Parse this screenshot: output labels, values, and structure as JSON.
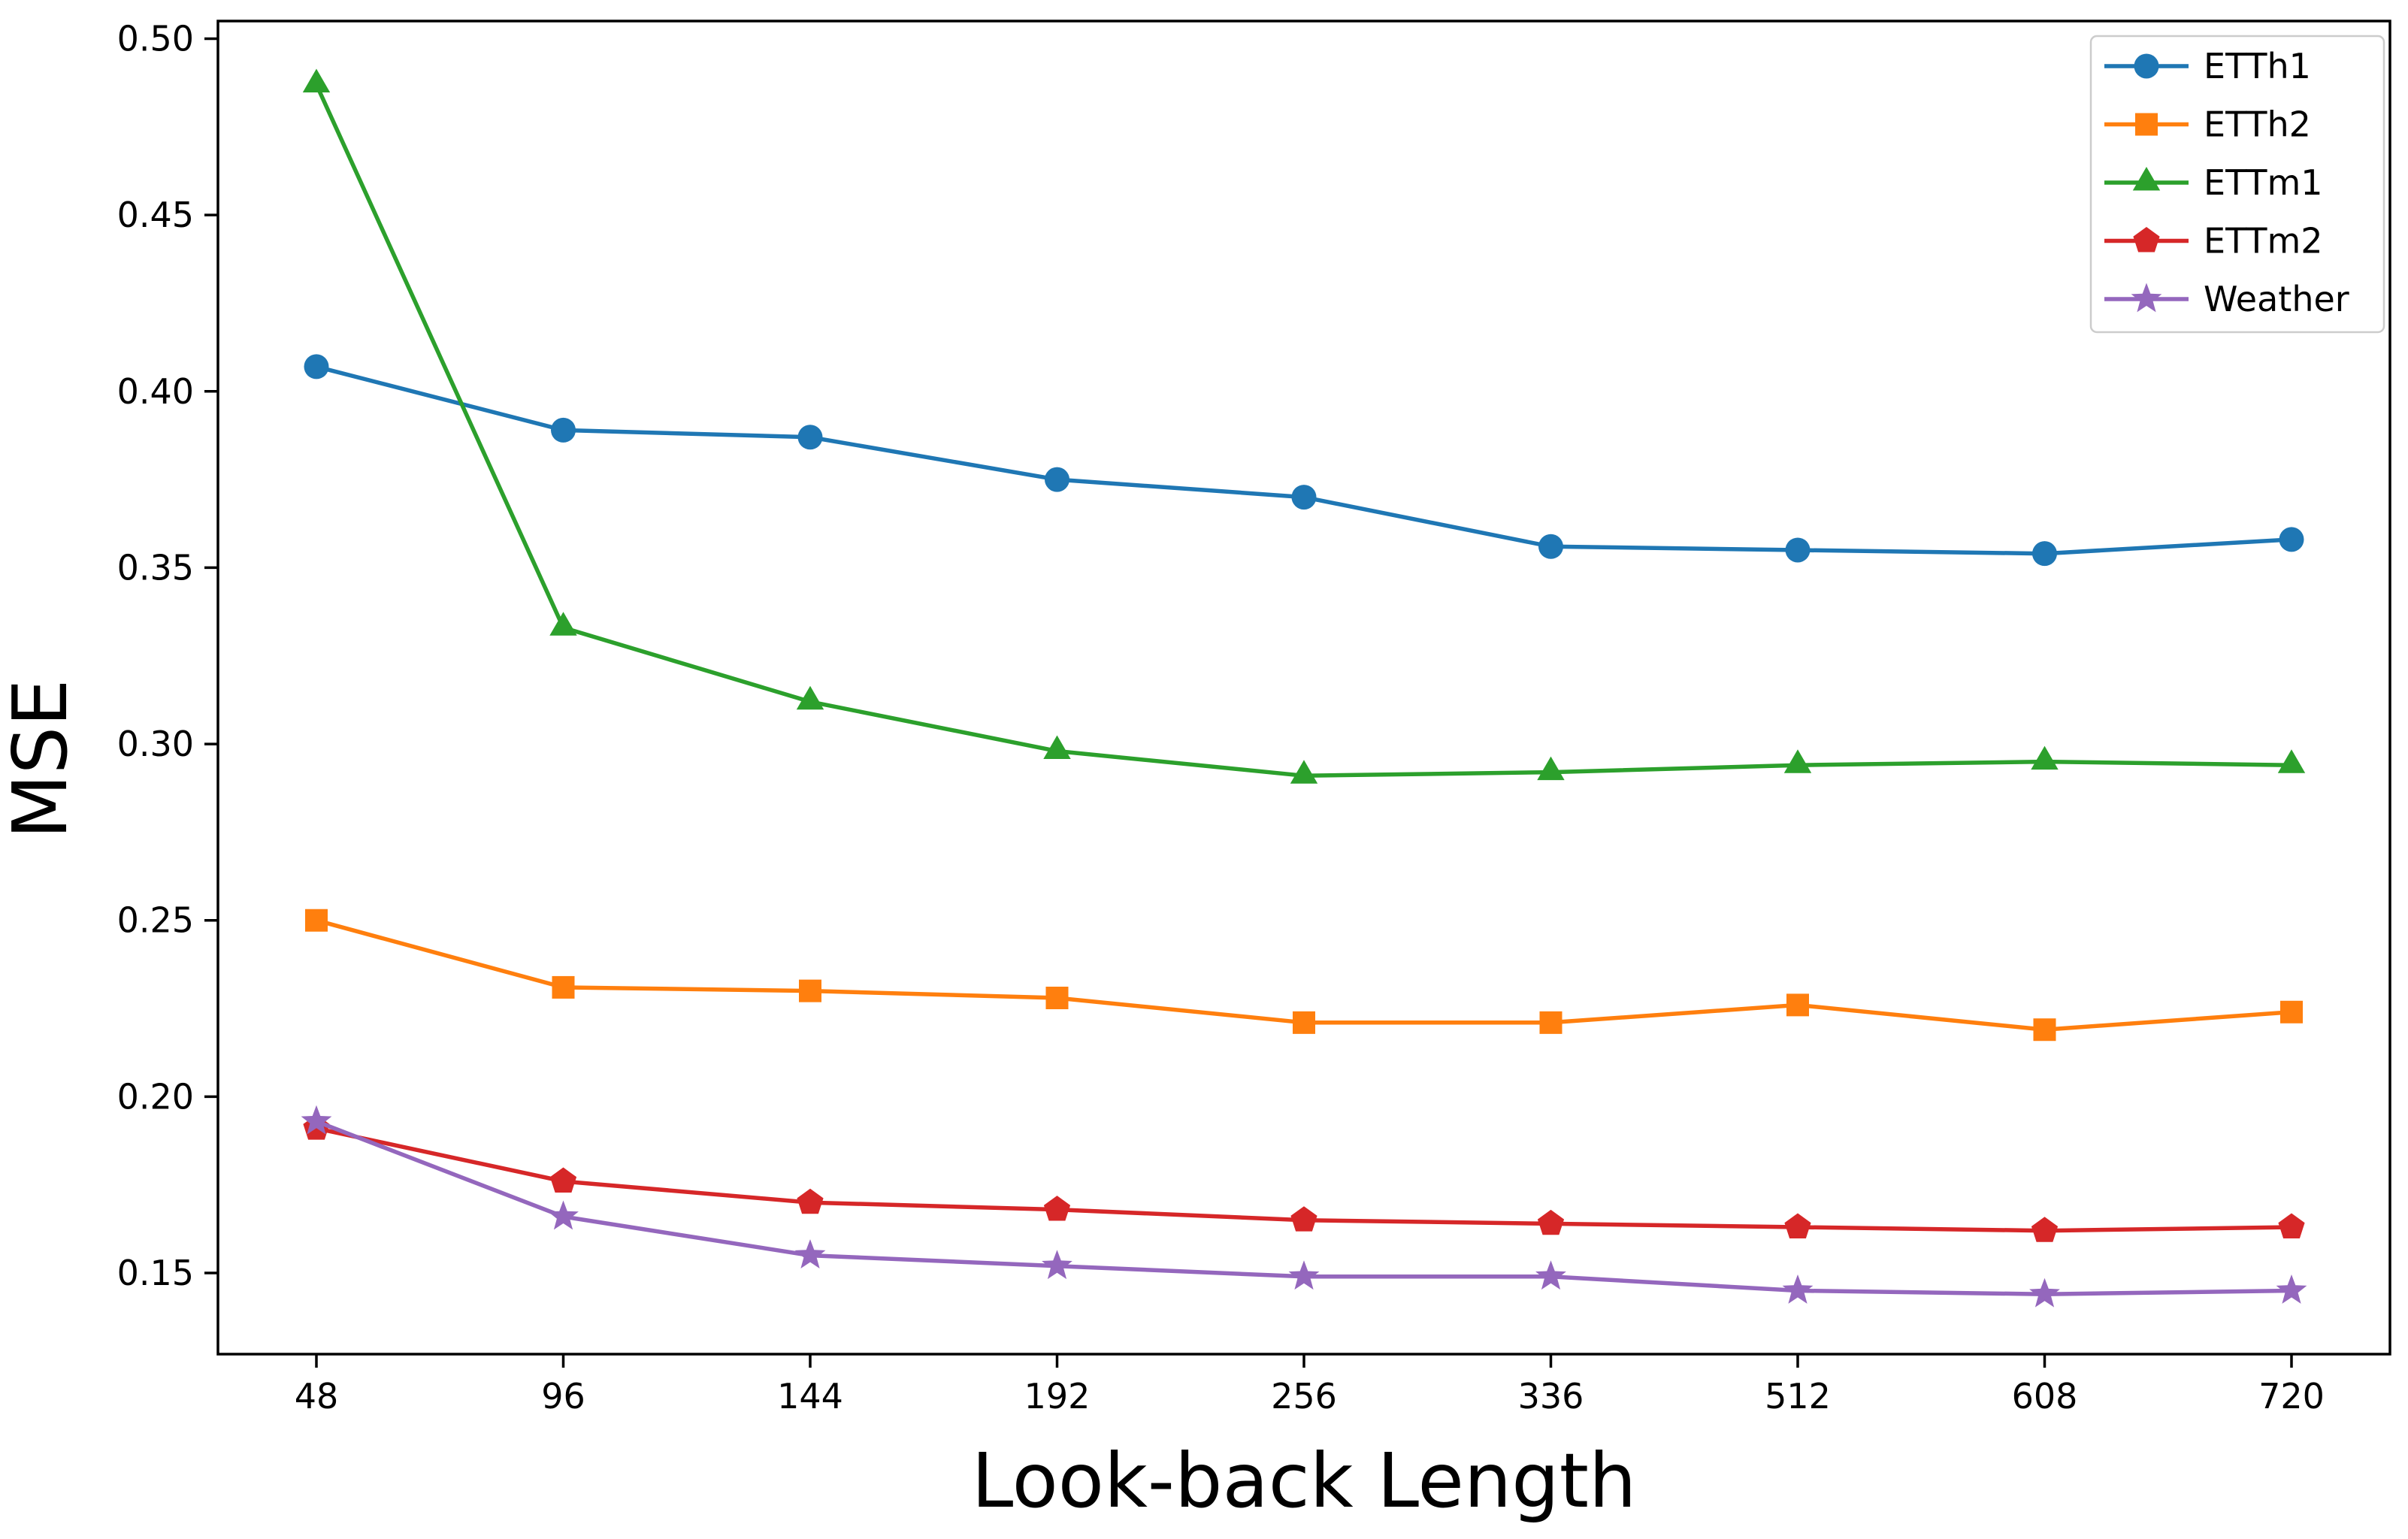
{
  "chart_data": {
    "type": "line",
    "title": "",
    "xlabel": "Look-back Length",
    "ylabel": "MSE",
    "categories": [
      "48",
      "96",
      "144",
      "192",
      "256",
      "336",
      "512",
      "608",
      "720"
    ],
    "ytick_labels": [
      "0.15",
      "0.20",
      "0.25",
      "0.30",
      "0.35",
      "0.40",
      "0.45",
      "0.50"
    ],
    "yticks": [
      0.15,
      0.2,
      0.25,
      0.3,
      0.35,
      0.4,
      0.45,
      0.5
    ],
    "ylim": [
      0.127,
      0.505
    ],
    "grid": false,
    "legend_position": "upper right",
    "frame_color": "#000000",
    "legend_edge_color": "#cccccc",
    "series": [
      {
        "name": "ETTh1",
        "color": "#1f77b4",
        "marker": "circle",
        "values": [
          0.407,
          0.389,
          0.387,
          0.375,
          0.37,
          0.356,
          0.355,
          0.354,
          0.358
        ]
      },
      {
        "name": "ETTh2",
        "color": "#ff7f0e",
        "marker": "square",
        "values": [
          0.25,
          0.231,
          0.23,
          0.228,
          0.221,
          0.221,
          0.226,
          0.219,
          0.224
        ]
      },
      {
        "name": "ETTm1",
        "color": "#2ca02c",
        "marker": "triangle",
        "values": [
          0.487,
          0.333,
          0.312,
          0.298,
          0.291,
          0.292,
          0.294,
          0.295,
          0.294
        ]
      },
      {
        "name": "ETTm2",
        "color": "#d62728",
        "marker": "pentagon",
        "values": [
          0.191,
          0.176,
          0.17,
          0.168,
          0.165,
          0.164,
          0.163,
          0.162,
          0.163
        ]
      },
      {
        "name": "Weather",
        "color": "#9467bd",
        "marker": "star",
        "values": [
          0.193,
          0.166,
          0.155,
          0.152,
          0.149,
          0.149,
          0.145,
          0.144,
          0.145
        ]
      }
    ]
  }
}
